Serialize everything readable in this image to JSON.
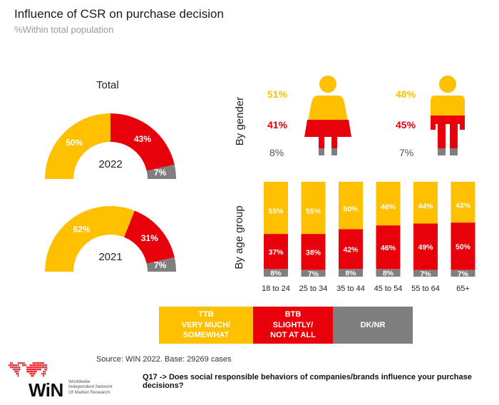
{
  "header": {
    "title": "Influence of CSR on purchase decision",
    "subtitle": "%Within total population"
  },
  "colors": {
    "ttb": "#FFC000",
    "btb": "#E8000B",
    "dk": "#7F7F7F"
  },
  "total": {
    "label": "Total",
    "gauges": [
      {
        "year": "2022",
        "ttb": "50%",
        "btb": "43%",
        "dk": "7%"
      },
      {
        "year": "2021",
        "ttb": "62%",
        "btb": "31%",
        "dk": "7%"
      }
    ]
  },
  "gender": {
    "label": "By gender",
    "female": {
      "ttb": "51%",
      "btb": "41%",
      "dk": "8%"
    },
    "male": {
      "ttb": "48%",
      "btb": "45%",
      "dk": "7%"
    }
  },
  "age": {
    "label": "By age group"
  },
  "chart_data": {
    "type": "bar",
    "stacked": true,
    "categories": [
      "18 to 24",
      "25 to 34",
      "35 to 44",
      "45 to 54",
      "55 to 64",
      "65+"
    ],
    "series": [
      {
        "name": "TTB VERY MUCH/ SOMEWHAT",
        "values": [
          55,
          55,
          50,
          46,
          44,
          43
        ]
      },
      {
        "name": "BTB SLIGHTLY/ NOT AT ALL",
        "values": [
          37,
          38,
          42,
          46,
          49,
          50
        ]
      },
      {
        "name": "DK/NR",
        "values": [
          8,
          7,
          8,
          8,
          7,
          7
        ]
      }
    ]
  },
  "legend": {
    "ttb": "TTB\nVERY MUCH/\nSOMEWHAT",
    "btb": "BTB\nSLIGHTLY/\nNOT AT ALL",
    "dk": "DK/NR"
  },
  "footer": {
    "source": "Source: WIN 2022. Base: 29269 cases",
    "question": "Q17 -> Does social responsible behaviors of companies/brands influence your purchase decisions?",
    "logo": "WiN",
    "logo_sub": "Worldwide\nIndependent Network\nOf Market Research"
  }
}
